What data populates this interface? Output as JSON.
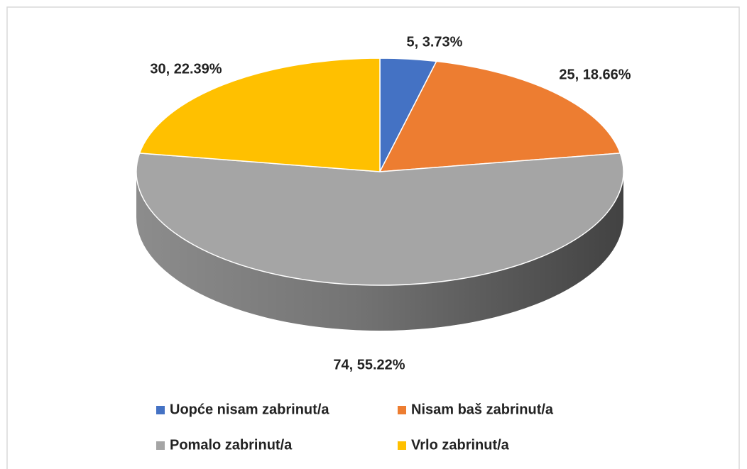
{
  "chart_data": {
    "type": "pie",
    "categories": [
      "Uopće nisam zabrinut/a",
      "Nisam baš zabrinut/a",
      "Pomalo zabrinut/a",
      "Vrlo zabrinut/a"
    ],
    "values": [
      5,
      25,
      74,
      30
    ],
    "value_labels": [
      "5, 3.73%",
      "25, 18.66%",
      "74, 55.22%",
      "30, 22.39%"
    ],
    "colors": [
      "#4472c4",
      "#ed7d31",
      "#a5a5a5",
      "#ffc000"
    ],
    "legend": "bottom"
  }
}
